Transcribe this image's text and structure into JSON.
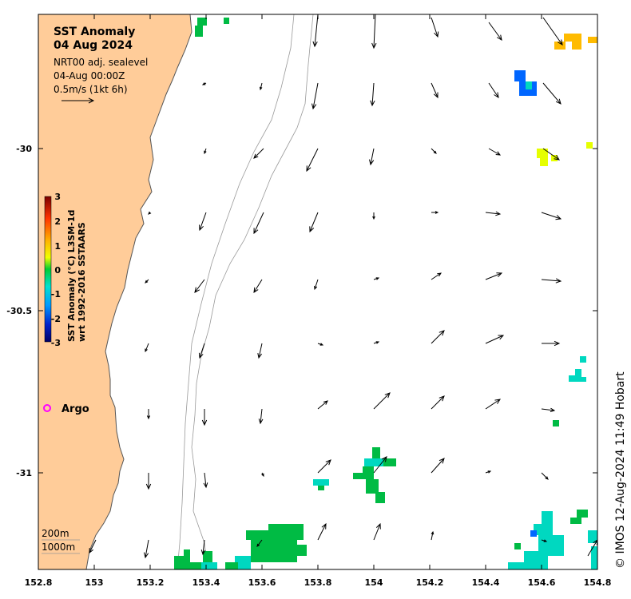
{
  "map": {
    "title_line1": "SST Anomaly",
    "title_line2": "04 Aug 2024",
    "subtitle_line1": "NRT00 adj. sealevel",
    "subtitle_line2": "04-Aug 00:00Z",
    "subtitle_line3": "0.5m/s (1kt 6h)",
    "argo_label": "Argo",
    "depth_label_1": "200m",
    "depth_label_2": "1000m",
    "credit": "© IMOS 12-Aug-2024 11:49 Hobart",
    "colorbar": {
      "label_line1": "SST Anomaly (°C) L3SM-1d",
      "label_line2": "wrt 1992-2016 SSTAARS",
      "ticks": [
        "3",
        "2",
        "1",
        "0",
        "-1",
        "-2",
        "-3"
      ]
    },
    "x_ticks": [
      "152.8",
      "153",
      "153.2",
      "153.4",
      "153.6",
      "153.8",
      "154",
      "154.2",
      "154.4",
      "154.6",
      "154.8"
    ],
    "y_ticks": [
      "-30",
      "-30.5",
      "-31"
    ],
    "colors": {
      "land": "#ffcc99",
      "argo": "#ff00ff",
      "anomaly_green": "#00bb44",
      "anomaly_teal": "#00d8c0",
      "anomaly_blue": "#0066ff",
      "anomaly_orange": "#ffbb00",
      "anomaly_yellow": "#e6ff00"
    }
  }
}
